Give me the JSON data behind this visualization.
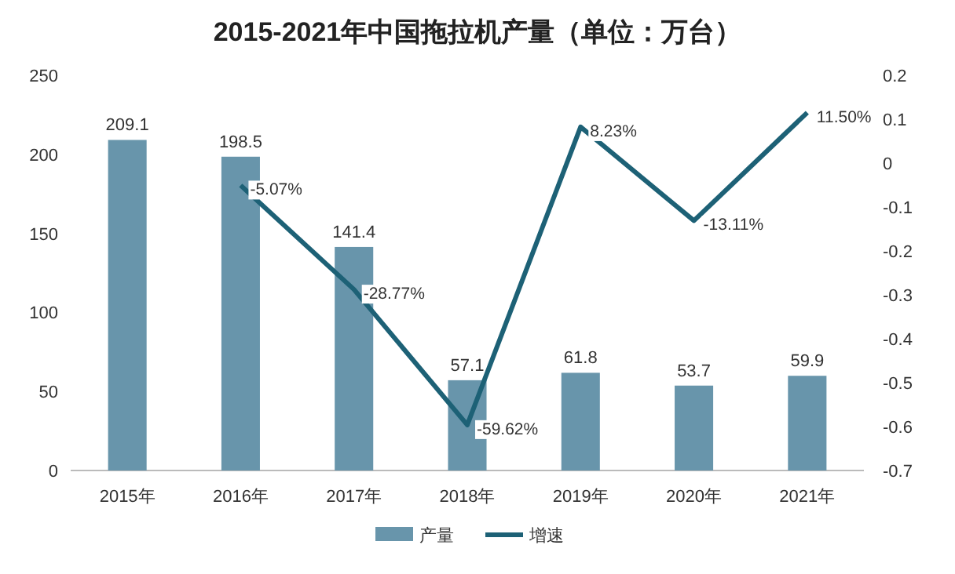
{
  "chart_data": {
    "type": "bar",
    "title": "2015-2021年中国拖拉机产量（单位：万台）",
    "categories": [
      "2015年",
      "2016年",
      "2017年",
      "2018年",
      "2019年",
      "2020年",
      "2021年"
    ],
    "series": [
      {
        "name": "产量",
        "color": "#6895ab",
        "values": [
          209.1,
          198.5,
          141.4,
          57.1,
          61.8,
          53.7,
          59.9
        ],
        "value_labels": [
          "209.1",
          "198.5",
          "141.4",
          "57.1",
          "61.8",
          "53.7",
          "59.9"
        ]
      },
      {
        "name": "增速",
        "type": "line",
        "axis": "y2",
        "color": "#1d6176",
        "values": [
          null,
          -0.0507,
          -0.2877,
          -0.5962,
          0.0823,
          -0.1311,
          0.115
        ],
        "value_labels": [
          null,
          "-5.07%",
          "-28.77%",
          "-59.62%",
          "8.23%",
          "-13.11%",
          "11.50%"
        ]
      }
    ],
    "ylim": [
      0,
      250
    ],
    "yticks": [
      0,
      50,
      100,
      150,
      200,
      250
    ],
    "y2lim": [
      -0.7,
      0.2
    ],
    "y2ticks": [
      -0.7,
      -0.6,
      -0.5,
      -0.4,
      -0.3,
      -0.2,
      -0.1,
      0,
      0.1,
      0.2
    ],
    "legend": "bottom"
  }
}
